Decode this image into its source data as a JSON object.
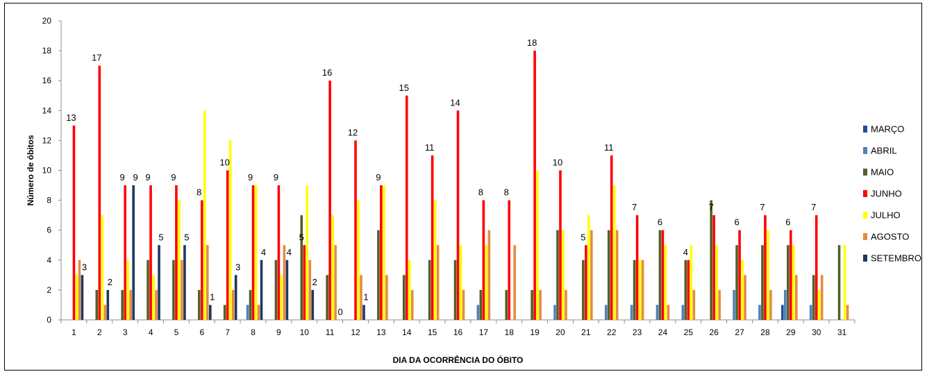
{
  "chart_data": {
    "type": "bar",
    "title": "",
    "xlabel": "DIA DA OCORRÊNCIA DO ÓBITO",
    "ylabel": "Número de óbitos",
    "ylim": [
      0,
      20
    ],
    "yticks": [
      0,
      2,
      4,
      6,
      8,
      10,
      12,
      14,
      16,
      18,
      20
    ],
    "grid": false,
    "legend_position": "right",
    "categories": [
      "1",
      "2",
      "3",
      "4",
      "5",
      "6",
      "7",
      "8",
      "9",
      "10",
      "11",
      "12",
      "13",
      "14",
      "15",
      "16",
      "17",
      "18",
      "19",
      "20",
      "21",
      "22",
      "23",
      "24",
      "25",
      "26",
      "27",
      "28",
      "29",
      "30",
      "31"
    ],
    "series": [
      {
        "name": "MARÇO",
        "color": "#1f4e9b",
        "values": [
          0,
          0,
          0,
          0,
          0,
          0,
          0,
          0,
          0,
          0,
          0,
          0,
          0,
          0,
          0,
          0,
          0,
          0,
          0,
          0,
          0,
          0,
          0,
          0,
          0,
          0,
          0,
          0,
          1,
          0,
          0
        ]
      },
      {
        "name": "ABRIL",
        "color": "#4f81bd",
        "values": [
          0,
          0,
          0,
          0,
          0,
          0,
          0,
          1,
          0,
          0,
          0,
          0,
          0,
          0,
          0,
          0,
          1,
          0,
          0,
          1,
          0,
          1,
          1,
          1,
          1,
          0,
          2,
          1,
          2,
          1,
          0
        ]
      },
      {
        "name": "MAIO",
        "color": "#4f6228",
        "values": [
          0,
          2,
          2,
          4,
          4,
          2,
          1,
          2,
          4,
          7,
          3,
          0,
          6,
          3,
          4,
          4,
          2,
          2,
          2,
          6,
          4,
          6,
          4,
          6,
          4,
          8,
          5,
          5,
          5,
          3,
          5
        ]
      },
      {
        "name": "JUNHO",
        "color": "#ff0000",
        "values": [
          13,
          17,
          9,
          9,
          9,
          8,
          10,
          9,
          9,
          5,
          16,
          12,
          9,
          15,
          11,
          14,
          8,
          8,
          18,
          10,
          5,
          11,
          7,
          6,
          4,
          7,
          6,
          7,
          6,
          7,
          0
        ]
      },
      {
        "name": "JULHO",
        "color": "#ffff00",
        "values": [
          3,
          7,
          4,
          3,
          8,
          14,
          12,
          9,
          3,
          9,
          7,
          8,
          9,
          4,
          8,
          5,
          5,
          0,
          10,
          6,
          7,
          9,
          4,
          5,
          5,
          5,
          4,
          6,
          5,
          2,
          5
        ]
      },
      {
        "name": "AGOSTO",
        "color": "#e48b42",
        "values": [
          4,
          1,
          2,
          2,
          4,
          5,
          2,
          1,
          5,
          4,
          5,
          3,
          3,
          2,
          5,
          2,
          6,
          5,
          2,
          2,
          6,
          6,
          4,
          1,
          2,
          2,
          3,
          2,
          3,
          3,
          1
        ]
      },
      {
        "name": "SETEMBRO",
        "color": "#1f3864",
        "values": [
          3,
          2,
          9,
          5,
          5,
          1,
          3,
          4,
          4,
          2,
          0,
          1,
          0,
          0,
          0,
          0,
          0,
          0,
          0,
          0,
          0,
          0,
          0,
          0,
          0,
          0,
          0,
          0,
          0,
          0,
          0
        ]
      }
    ],
    "data_labels": {
      "JUNHO": [
        "13",
        "17",
        "9",
        "9",
        "9",
        "8",
        "10",
        "9",
        "9",
        "5",
        "16",
        "12",
        "9",
        "15",
        "11",
        "14",
        "8",
        "8",
        "18",
        "10",
        "5",
        "11",
        "7",
        "6",
        "4",
        "7",
        "6",
        "7",
        "6",
        "7",
        ""
      ],
      "SETEMBRO": [
        "3",
        "2",
        "9",
        "5",
        "5",
        "1",
        "3",
        "4",
        "4",
        "2",
        "0",
        "1",
        "",
        "",
        "",
        "",
        "",
        "",
        "",
        "",
        "",
        "",
        "",
        "",
        "",
        "",
        "",
        "",
        "",
        "",
        ""
      ]
    }
  }
}
